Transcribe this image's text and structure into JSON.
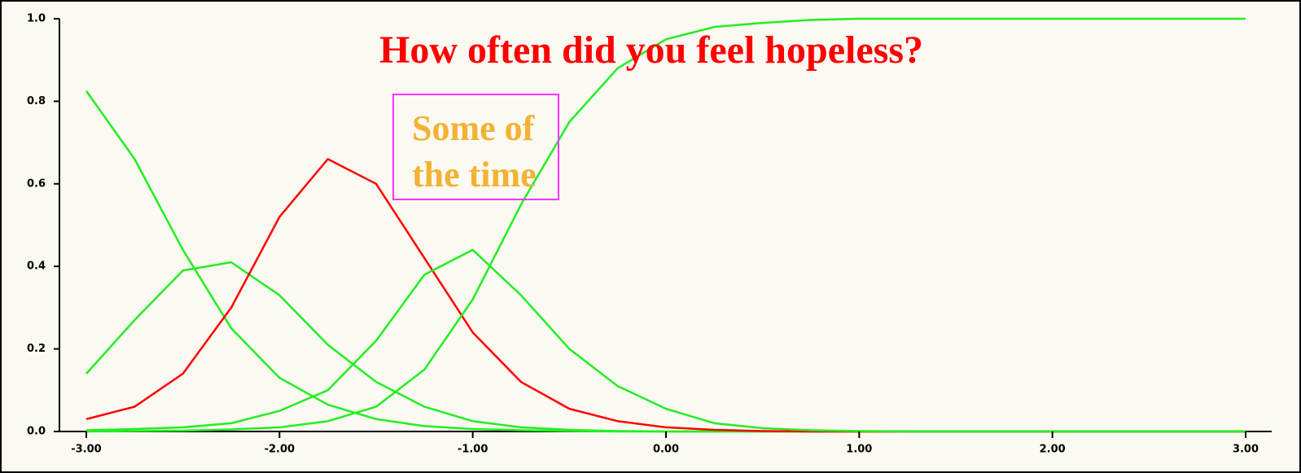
{
  "chart_data": {
    "type": "line",
    "title": "How often did you feel hopeless?",
    "annotation": "Some of the time",
    "x": [
      -3,
      -2.75,
      -2.5,
      -2.25,
      -2,
      -1.75,
      -1.5,
      -1.25,
      -1,
      -0.75,
      -0.5,
      -0.25,
      0,
      0.25,
      0.5,
      0.75,
      1,
      1.25,
      1.5,
      1.75,
      2,
      2.25,
      2.5,
      2.75,
      3
    ],
    "series": [
      {
        "color": "#22ee22",
        "values": [
          0.825,
          0.66,
          0.44,
          0.25,
          0.13,
          0.065,
          0.03,
          0.013,
          0.006,
          0.003,
          0.001,
          0,
          0,
          0,
          0,
          0,
          0,
          0,
          0,
          0,
          0,
          0,
          0,
          0,
          0
        ]
      },
      {
        "color": "#22ee22",
        "values": [
          0.14,
          0.27,
          0.39,
          0.41,
          0.33,
          0.21,
          0.12,
          0.06,
          0.025,
          0.01,
          0.004,
          0.001,
          0,
          0,
          0,
          0,
          0,
          0,
          0,
          0,
          0,
          0,
          0,
          0,
          0
        ]
      },
      {
        "color": "#ff0000",
        "values": [
          0.03,
          0.06,
          0.14,
          0.3,
          0.52,
          0.66,
          0.6,
          0.42,
          0.24,
          0.12,
          0.055,
          0.025,
          0.01,
          0.004,
          0.001,
          0,
          0,
          0,
          0,
          0,
          0,
          0,
          0,
          0,
          0
        ]
      },
      {
        "color": "#22ee22",
        "values": [
          0.003,
          0.006,
          0.01,
          0.02,
          0.05,
          0.1,
          0.22,
          0.38,
          0.44,
          0.33,
          0.2,
          0.11,
          0.055,
          0.02,
          0.008,
          0.003,
          0.001,
          0,
          0,
          0,
          0,
          0,
          0,
          0,
          0
        ]
      },
      {
        "color": "#22ee22",
        "values": [
          0,
          0.001,
          0.002,
          0.005,
          0.01,
          0.025,
          0.06,
          0.15,
          0.32,
          0.55,
          0.75,
          0.88,
          0.95,
          0.98,
          0.99,
          0.997,
          1,
          1,
          1,
          1,
          1,
          1,
          1,
          1,
          1
        ]
      }
    ],
    "xlim": [
      -3,
      3
    ],
    "ylim": [
      0,
      1
    ],
    "xticks": [
      {
        "value": -3,
        "label": "-3.00"
      },
      {
        "value": -2,
        "label": "-2.00"
      },
      {
        "value": -1,
        "label": "-1.00"
      },
      {
        "value": 0,
        "label": "0.00"
      },
      {
        "value": 1,
        "label": "1.00"
      },
      {
        "value": 2,
        "label": "2.00"
      },
      {
        "value": 3,
        "label": "3.00"
      }
    ],
    "yticks": [
      {
        "value": 0,
        "label": "0.0"
      },
      {
        "value": 0.2,
        "label": "0.2"
      },
      {
        "value": 0.4,
        "label": "0.4"
      },
      {
        "value": 0.6,
        "label": "0.6"
      },
      {
        "value": 0.8,
        "label": "0.8"
      },
      {
        "value": 1,
        "label": "1.0"
      }
    ]
  }
}
